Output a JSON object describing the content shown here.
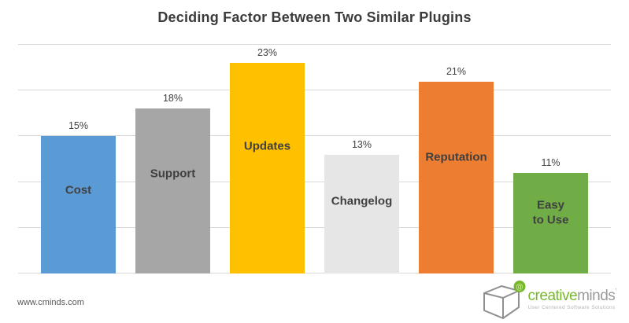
{
  "title": "Deciding Factor Between Two Similar Plugins",
  "chart_data": {
    "type": "bar",
    "title": "Deciding Factor Between Two Similar Plugins",
    "categories": [
      "Cost",
      "Support",
      "Updates",
      "Changelog",
      "Reputation",
      "Easy to Use"
    ],
    "category_display": [
      "Cost",
      "Support",
      "Updates",
      "Changelog",
      "Reputation",
      "Easy\nto Use"
    ],
    "values": [
      15,
      18,
      23,
      13,
      21,
      11
    ],
    "value_labels": [
      "15%",
      "18%",
      "23%",
      "13%",
      "21%",
      "11%"
    ],
    "bar_colors": [
      "#5B9BD5",
      "#A6A6A6",
      "#FFC000",
      "#E7E6E6",
      "#ED7D31",
      "#70AD47"
    ],
    "xlabel": "",
    "ylabel": "",
    "ylim": [
      0,
      25
    ],
    "gridline_step": 5,
    "grid": true,
    "legend": false,
    "gridline_color": "#D9D9D9",
    "label_position": "inside",
    "value_label_position": "above"
  },
  "footer": {
    "website": "www.cminds.com",
    "logo": {
      "brand_green": "creative",
      "brand_gray": "minds",
      "brand_mark": "’",
      "at_symbol": "@",
      "tagline": "User Centered Software Solutions",
      "accent_green": "#76B82A",
      "cube_stroke": "#909090"
    }
  }
}
